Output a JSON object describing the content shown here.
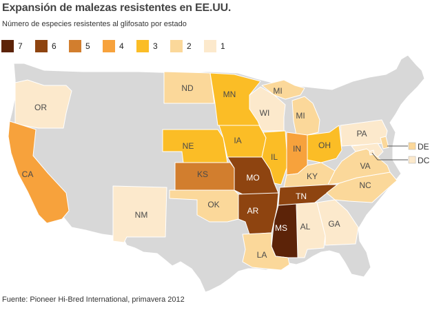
{
  "title": "Expansión de malezas resistentes en EE.UU.",
  "subtitle": "Número de especies resistentes al glifosato por estado",
  "source": "Fuente: Pioneer Hi-Bred International, primavera 2012",
  "legend": [
    {
      "label": "7",
      "value": 7,
      "color": "#5c2308"
    },
    {
      "label": "6",
      "value": 6,
      "color": "#8e4410"
    },
    {
      "label": "5",
      "value": 5,
      "color": "#d27e2e"
    },
    {
      "label": "4",
      "value": 4,
      "color": "#f7a23c"
    },
    {
      "label": "3",
      "value": 3,
      "color": "#fbbd26"
    },
    {
      "label": "2",
      "value": 2,
      "color": "#fbd89a"
    },
    {
      "label": "1",
      "value": 1,
      "color": "#fce9cc"
    }
  ],
  "no_data_color": "#d8d8d8",
  "states": [
    {
      "abbr": "MS",
      "value": 7
    },
    {
      "abbr": "MO",
      "value": 6
    },
    {
      "abbr": "AR",
      "value": 6
    },
    {
      "abbr": "TN",
      "value": 6
    },
    {
      "abbr": "KS",
      "value": 5
    },
    {
      "abbr": "CA",
      "value": 4
    },
    {
      "abbr": "IN",
      "value": 4
    },
    {
      "abbr": "MN",
      "value": 3
    },
    {
      "abbr": "IA",
      "value": 3
    },
    {
      "abbr": "NE",
      "value": 3
    },
    {
      "abbr": "IL",
      "value": 3
    },
    {
      "abbr": "OH",
      "value": 3
    },
    {
      "abbr": "ND",
      "value": 2
    },
    {
      "abbr": "MI",
      "value": 2
    },
    {
      "abbr": "KY",
      "value": 2
    },
    {
      "abbr": "OK",
      "value": 2
    },
    {
      "abbr": "NC",
      "value": 2
    },
    {
      "abbr": "VA",
      "value": 2
    },
    {
      "abbr": "LA",
      "value": 2
    },
    {
      "abbr": "DE",
      "value": 2
    },
    {
      "abbr": "OR",
      "value": 1
    },
    {
      "abbr": "WI",
      "value": 1
    },
    {
      "abbr": "NM",
      "value": 1
    },
    {
      "abbr": "AL",
      "value": 1
    },
    {
      "abbr": "GA",
      "value": 1
    },
    {
      "abbr": "PA",
      "value": 1
    },
    {
      "abbr": "MD",
      "value": 1
    },
    {
      "abbr": "DC",
      "value": 1
    }
  ],
  "map_labels": [
    "OR",
    "ND",
    "MN",
    "MI",
    "WI",
    "MI",
    "CA",
    "NE",
    "IA",
    "IL",
    "IN",
    "OH",
    "PA",
    "KS",
    "MO",
    "KY",
    "VA",
    "NM",
    "OK",
    "AR",
    "TN",
    "NC",
    "MS",
    "AL",
    "GA",
    "LA"
  ],
  "callouts": [
    "DE",
    "DC"
  ]
}
